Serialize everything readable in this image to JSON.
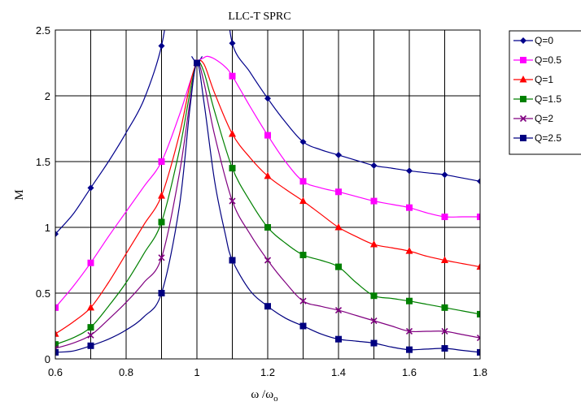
{
  "chart_data": {
    "type": "line",
    "title": "LLC-T  SPRC",
    "xlabel": "ω /ω",
    "xlabel_sub": "o",
    "ylabel": "M",
    "xlim": [
      0.6,
      1.8
    ],
    "ylim": [
      0,
      2.5
    ],
    "xticks": [
      0.6,
      0.7,
      0.8,
      0.9,
      1.0,
      1.1,
      1.2,
      1.3,
      1.4,
      1.5,
      1.6,
      1.7,
      1.8
    ],
    "xtick_labels": [
      "0.6",
      "",
      "0.8",
      "",
      "1",
      "",
      "1.2",
      "",
      "1.4",
      "",
      "1.6",
      "",
      "1.8"
    ],
    "yticks": [
      0,
      0.5,
      1,
      1.5,
      2,
      2.5
    ],
    "ytick_labels": [
      "0",
      "0.5",
      "1",
      "1.5",
      "2",
      "2.5"
    ],
    "grid": true,
    "legend_position": "right",
    "series": [
      {
        "name": "Q=0",
        "color": "#00008b",
        "marker": "diamond",
        "x": [
          0.6,
          0.7,
          0.9,
          1.0,
          1.1,
          1.2,
          1.3,
          1.4,
          1.5,
          1.6,
          1.7,
          1.8
        ],
        "y": [
          0.95,
          1.3,
          2.38,
          2.25,
          2.4,
          1.98,
          1.65,
          1.55,
          1.47,
          1.43,
          1.4,
          1.35
        ],
        "curve_x": [
          0.6,
          0.65,
          0.7,
          0.75,
          0.8,
          0.85,
          0.9,
          0.92,
          0.94,
          1.06,
          1.08,
          1.1,
          1.15,
          1.2,
          1.25,
          1.3,
          1.35,
          1.4,
          1.45,
          1.5,
          1.55,
          1.6,
          1.65,
          1.7,
          1.75,
          1.8
        ],
        "curve_y": [
          0.95,
          1.1,
          1.3,
          1.5,
          1.72,
          1.97,
          2.38,
          2.8,
          3.6,
          3.6,
          2.9,
          2.4,
          2.18,
          1.98,
          1.8,
          1.65,
          1.59,
          1.55,
          1.51,
          1.47,
          1.45,
          1.43,
          1.415,
          1.4,
          1.375,
          1.35
        ],
        "curve_x2": [
          0.985,
          1.0,
          1.015
        ],
        "curve_y2": [
          2.3,
          2.25,
          2.3
        ]
      },
      {
        "name": "Q=0.5",
        "color": "#ff00ff",
        "marker": "square",
        "x": [
          0.6,
          0.7,
          0.9,
          1.0,
          1.1,
          1.2,
          1.3,
          1.4,
          1.5,
          1.6,
          1.7,
          1.8
        ],
        "y": [
          0.39,
          0.73,
          1.5,
          2.25,
          2.15,
          1.7,
          1.35,
          1.27,
          1.2,
          1.15,
          1.08,
          1.08
        ],
        "curve_x": [
          0.6,
          0.65,
          0.7,
          0.75,
          0.8,
          0.85,
          0.9,
          0.95,
          0.98,
          1.0,
          1.02,
          1.03,
          1.05,
          1.08,
          1.1,
          1.15,
          1.2,
          1.25,
          1.3,
          1.35,
          1.4,
          1.45,
          1.5,
          1.55,
          1.6,
          1.65,
          1.7,
          1.75,
          1.8
        ],
        "curve_y": [
          0.39,
          0.55,
          0.73,
          0.93,
          1.12,
          1.31,
          1.5,
          1.85,
          2.1,
          2.25,
          2.29,
          2.3,
          2.28,
          2.22,
          2.15,
          1.92,
          1.7,
          1.5,
          1.35,
          1.3,
          1.27,
          1.235,
          1.2,
          1.175,
          1.15,
          1.11,
          1.08,
          1.08,
          1.08
        ]
      },
      {
        "name": "Q=1",
        "color": "#ff0000",
        "marker": "triangle",
        "x": [
          0.6,
          0.7,
          0.9,
          1.0,
          1.1,
          1.2,
          1.3,
          1.4,
          1.5,
          1.6,
          1.7,
          1.8
        ],
        "y": [
          0.19,
          0.39,
          1.24,
          2.25,
          1.71,
          1.39,
          1.2,
          1.0,
          0.87,
          0.82,
          0.75,
          0.7
        ],
        "curve_x": [
          0.6,
          0.65,
          0.7,
          0.75,
          0.8,
          0.85,
          0.9,
          0.95,
          0.98,
          1.0,
          1.02,
          1.05,
          1.1,
          1.15,
          1.2,
          1.25,
          1.3,
          1.35,
          1.4,
          1.45,
          1.5,
          1.55,
          1.6,
          1.65,
          1.7,
          1.75,
          1.8
        ],
        "curve_y": [
          0.19,
          0.28,
          0.39,
          0.58,
          0.8,
          1.02,
          1.24,
          1.7,
          2.08,
          2.25,
          2.24,
          2.02,
          1.71,
          1.53,
          1.39,
          1.29,
          1.2,
          1.1,
          1.0,
          0.93,
          0.87,
          0.845,
          0.82,
          0.78,
          0.75,
          0.725,
          0.7
        ]
      },
      {
        "name": "Q=1.5",
        "color": "#008000",
        "marker": "square",
        "x": [
          0.6,
          0.7,
          0.9,
          1.0,
          1.1,
          1.2,
          1.3,
          1.4,
          1.5,
          1.6,
          1.7,
          1.8
        ],
        "y": [
          0.11,
          0.24,
          1.04,
          2.25,
          1.45,
          1.0,
          0.79,
          0.7,
          0.48,
          0.44,
          0.39,
          0.34
        ],
        "curve_x": [
          0.6,
          0.65,
          0.7,
          0.75,
          0.8,
          0.85,
          0.9,
          0.95,
          0.98,
          1.0,
          1.02,
          1.05,
          1.1,
          1.15,
          1.2,
          1.25,
          1.3,
          1.35,
          1.4,
          1.45,
          1.5,
          1.55,
          1.6,
          1.65,
          1.7,
          1.75,
          1.8
        ],
        "curve_y": [
          0.11,
          0.16,
          0.24,
          0.4,
          0.58,
          0.8,
          1.04,
          1.58,
          2.02,
          2.25,
          2.18,
          1.88,
          1.45,
          1.2,
          1.0,
          0.88,
          0.79,
          0.75,
          0.7,
          0.58,
          0.48,
          0.46,
          0.44,
          0.415,
          0.39,
          0.365,
          0.34
        ]
      },
      {
        "name": "Q=2",
        "color": "#800080",
        "marker": "x",
        "x": [
          0.6,
          0.7,
          0.9,
          1.0,
          1.1,
          1.2,
          1.3,
          1.4,
          1.5,
          1.6,
          1.7,
          1.8
        ],
        "y": [
          0.08,
          0.18,
          0.77,
          2.25,
          1.2,
          0.75,
          0.44,
          0.37,
          0.29,
          0.21,
          0.21,
          0.16
        ],
        "curve_x": [
          0.6,
          0.65,
          0.7,
          0.75,
          0.8,
          0.85,
          0.9,
          0.95,
          0.98,
          1.0,
          1.02,
          1.05,
          1.1,
          1.15,
          1.2,
          1.25,
          1.3,
          1.35,
          1.4,
          1.45,
          1.5,
          1.55,
          1.6,
          1.65,
          1.7,
          1.75,
          1.8
        ],
        "curve_y": [
          0.08,
          0.12,
          0.18,
          0.3,
          0.43,
          0.58,
          0.77,
          1.4,
          1.95,
          2.25,
          2.1,
          1.7,
          1.2,
          0.95,
          0.75,
          0.58,
          0.44,
          0.4,
          0.37,
          0.33,
          0.29,
          0.25,
          0.21,
          0.21,
          0.21,
          0.185,
          0.16
        ]
      },
      {
        "name": "Q=2.5",
        "color": "#000080",
        "marker": "square",
        "x": [
          0.6,
          0.7,
          0.9,
          1.0,
          1.1,
          1.2,
          1.3,
          1.4,
          1.5,
          1.6,
          1.7,
          1.8
        ],
        "y": [
          0.05,
          0.1,
          0.5,
          2.25,
          0.75,
          0.4,
          0.25,
          0.15,
          0.12,
          0.07,
          0.08,
          0.05
        ],
        "curve_x": [
          0.6,
          0.65,
          0.7,
          0.75,
          0.8,
          0.85,
          0.9,
          0.95,
          0.98,
          1.0,
          1.02,
          1.05,
          1.08,
          1.1,
          1.15,
          1.2,
          1.25,
          1.3,
          1.35,
          1.4,
          1.45,
          1.5,
          1.55,
          1.6,
          1.65,
          1.7,
          1.75,
          1.8
        ],
        "curve_y": [
          0.05,
          0.06,
          0.1,
          0.15,
          0.22,
          0.32,
          0.5,
          1.15,
          1.9,
          2.25,
          1.95,
          1.35,
          0.95,
          0.75,
          0.52,
          0.4,
          0.31,
          0.25,
          0.19,
          0.15,
          0.135,
          0.12,
          0.09,
          0.07,
          0.075,
          0.08,
          0.065,
          0.05
        ]
      }
    ]
  }
}
